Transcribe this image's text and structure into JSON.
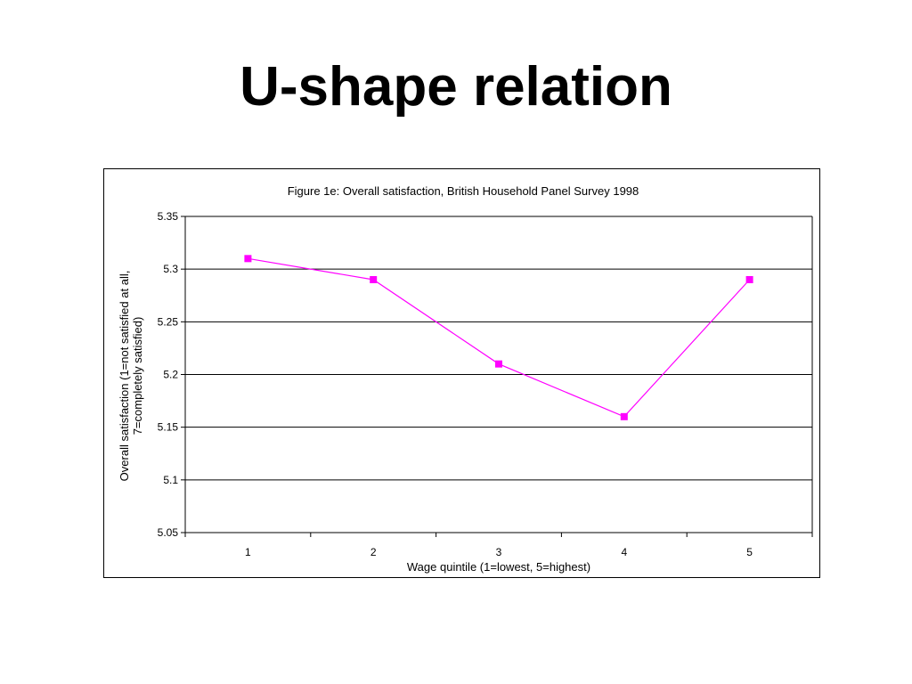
{
  "slide": {
    "title": "U-shape relation"
  },
  "chart_data": {
    "type": "line",
    "title": "Figure 1e: Overall satisfaction, British Household Panel Survey 1998",
    "xlabel": "Wage quintile (1=lowest, 5=highest)",
    "ylabel_lines": [
      "Overall satisfaction (1=not satisfied at all,",
      "7=completely satisfied)"
    ],
    "categories": [
      "1",
      "2",
      "3",
      "4",
      "5"
    ],
    "series": [
      {
        "values": [
          5.31,
          5.29,
          5.21,
          5.16,
          5.29
        ],
        "color": "#ff00ff"
      }
    ],
    "ylim": [
      5.05,
      5.35
    ],
    "yticks": [
      "5.05",
      "5.1",
      "5.15",
      "5.2",
      "5.25",
      "5.3",
      "5.35"
    ],
    "grid": true,
    "legend": "none"
  }
}
